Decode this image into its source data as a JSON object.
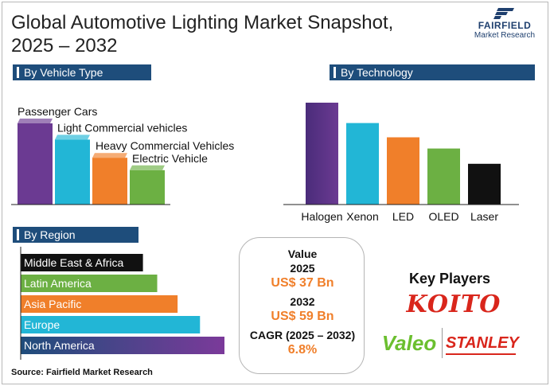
{
  "title": "Global Automotive Lighting Market Snapshot, 2025 – 2032",
  "logo": {
    "brand": "FAIRFIELD",
    "subtitle": "Market Research"
  },
  "sections": {
    "vehicle": "By Vehicle Type",
    "technology": "By Technology",
    "region": "By Region"
  },
  "chart_data": [
    {
      "type": "bar",
      "title": "By Vehicle Type",
      "categories": [
        "Passenger Cars",
        "Light Commercial vehicles",
        "Heavy Commercial Vehicles",
        "Electric Vehicle"
      ],
      "values": [
        85,
        68,
        49,
        36
      ],
      "colors": [
        "#6b3a92",
        "#22b6d6",
        "#f07f2a",
        "#6cb043"
      ],
      "ylim": [
        0,
        100
      ],
      "xlabel": "",
      "ylabel": ""
    },
    {
      "type": "bar",
      "title": "By Technology",
      "categories": [
        "Halogen",
        "Xenon",
        "LED",
        "OLED",
        "Laser"
      ],
      "values": [
        100,
        80,
        66,
        55,
        40
      ],
      "colors": [
        "#6b3a92",
        "#22b6d6",
        "#f07f2a",
        "#6cb043",
        "#111111"
      ],
      "ylim": [
        0,
        100
      ],
      "xlabel": "",
      "ylabel": ""
    },
    {
      "type": "bar",
      "orientation": "horizontal",
      "title": "By Region",
      "categories": [
        "Middle East & Africa",
        "Latin America",
        "Asia Pacific",
        "Europe",
        "North America"
      ],
      "values": [
        60,
        67,
        77,
        88,
        100
      ],
      "colors": [
        "#111111",
        "#6cb043",
        "#f07f2a",
        "#22b6d6",
        "#6b3a92"
      ],
      "xlim": [
        0,
        100
      ],
      "xlabel": "",
      "ylabel": ""
    }
  ],
  "value_box": {
    "heading": "Value",
    "year_start": "2025",
    "value_start": "US$ 37 Bn",
    "year_end": "2032",
    "value_end": "US$ 59 Bn",
    "cagr_label": "CAGR (2025 – 2032)",
    "cagr_value": "6.8%"
  },
  "key_players": {
    "title": "Key Players",
    "logos": [
      "KOITO",
      "Valeo",
      "STANLEY"
    ]
  },
  "source": "Source: Fairfield Market Research"
}
